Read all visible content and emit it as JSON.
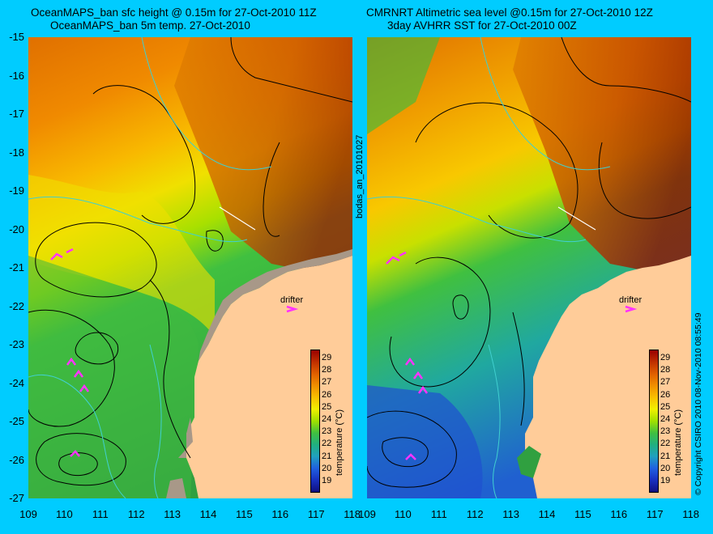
{
  "left_panel": {
    "title_line1": "OceanMAPS_ban sfc height @ 0.15m for 27-Oct-2010 11Z",
    "title_line2": "OceanMAPS_ban 5m temp. 27-Oct-2010"
  },
  "right_panel": {
    "title_line1": "CMRNRT Altimetric sea level  @0.15m  for 27-Oct-2010 12Z",
    "title_line2": "3day AVHRR SST for 27-Oct-2010 00Z"
  },
  "y_ticks": [
    "-15",
    "-16",
    "-17",
    "-18",
    "-19",
    "-20",
    "-21",
    "-22",
    "-23",
    "-24",
    "-25",
    "-26",
    "-27"
  ],
  "x_ticks": [
    "109",
    "110",
    "111",
    "112",
    "113",
    "114",
    "115",
    "116",
    "117",
    "118"
  ],
  "drifter_label": "drifter",
  "run_label": "bodas_an_20101027",
  "copyright": "© Copyright CSIRO 2010   08-Nov-2010 08:55:49",
  "colorbar": {
    "title": "temperature (°C)",
    "ticks": [
      "29",
      "28",
      "27",
      "26",
      "25",
      "24",
      "23",
      "22",
      "21",
      "20",
      "19"
    ]
  },
  "colors": {
    "background": "#00ccff",
    "land": "#ffcc99",
    "coast_shelf": "#a89888"
  }
}
